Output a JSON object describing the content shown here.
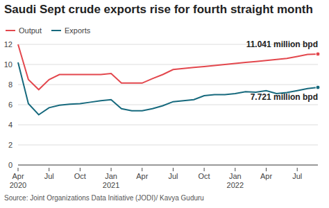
{
  "chart_data": {
    "type": "line",
    "title": "Saudi Sept crude exports rise for fourth straight month",
    "source": "Source: Joint Organizations Data Initiative (JODI)/ Kavya Guduru",
    "categories": [
      "Apr 2020",
      null,
      null,
      "Jul",
      null,
      null,
      "Oct",
      null,
      null,
      "Jan 2021",
      null,
      null,
      "Apr",
      null,
      null,
      "Jul",
      null,
      null,
      "Oct",
      null,
      null,
      "Jan 2022",
      null,
      null,
      "Apr",
      null,
      null,
      "Jul",
      null,
      null
    ],
    "series": [
      {
        "name": "Output",
        "color": "#e3474d",
        "values": [
          12.0,
          8.5,
          7.5,
          8.5,
          9.0,
          9.0,
          9.0,
          9.0,
          9.0,
          9.1,
          8.15,
          8.15,
          8.15,
          8.6,
          9.0,
          9.5,
          9.6,
          9.7,
          9.8,
          9.9,
          10.0,
          10.1,
          10.2,
          10.3,
          10.4,
          10.5,
          10.6,
          10.8,
          11.0,
          11.041
        ]
      },
      {
        "name": "Exports",
        "color": "#16697d",
        "values": [
          10.2,
          6.1,
          5.0,
          5.7,
          5.95,
          6.05,
          6.1,
          6.25,
          6.4,
          6.5,
          5.6,
          5.4,
          5.4,
          5.6,
          5.9,
          6.3,
          6.4,
          6.5,
          6.9,
          7.0,
          7.0,
          7.1,
          7.3,
          7.25,
          7.4,
          7.1,
          7.2,
          7.4,
          7.6,
          7.721
        ]
      }
    ],
    "annotations": [
      {
        "series": "Output",
        "text": "11.041 million bpd"
      },
      {
        "series": "Exports",
        "text": "7.721 million bpd"
      }
    ],
    "ylim": [
      0,
      12
    ],
    "yticks": [
      0,
      2,
      4,
      6,
      8,
      10,
      12
    ],
    "grid": true,
    "legend": "top-left"
  }
}
